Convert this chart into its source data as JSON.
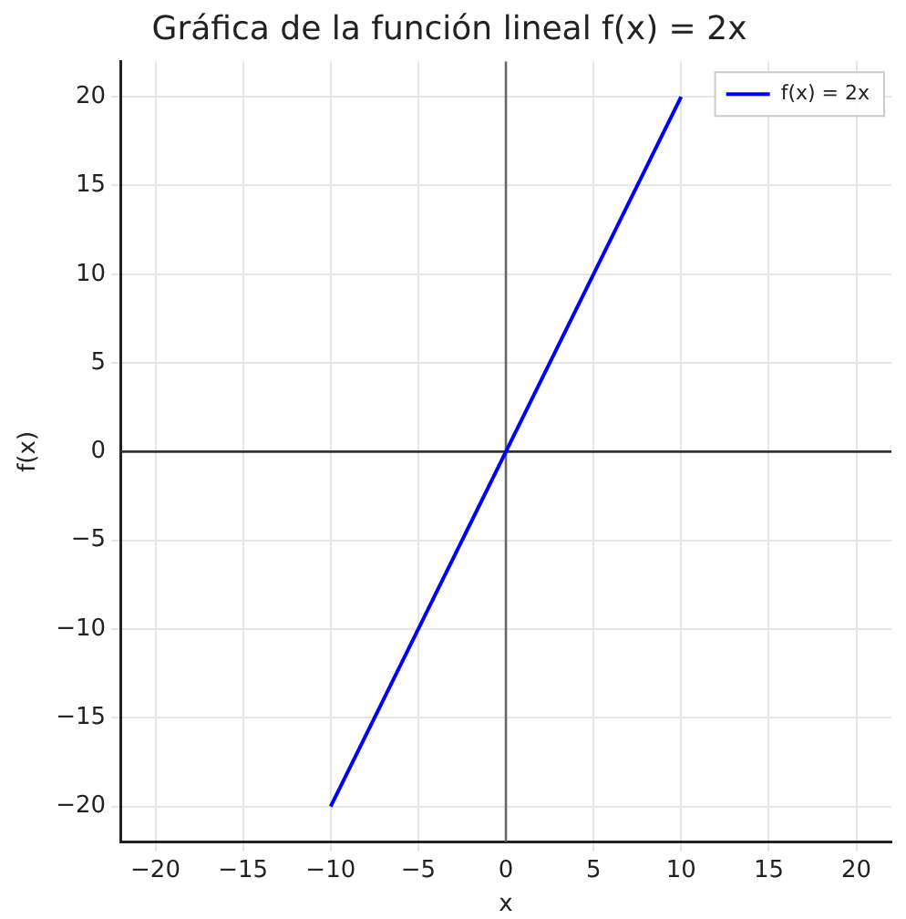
{
  "chart_data": {
    "type": "line",
    "title": "Gráfica de la función lineal f(x) = 2x",
    "xlabel": "x",
    "ylabel": "f(x)",
    "series": [
      {
        "name": "f(x) = 2x",
        "color": "#0000ff",
        "x": [
          -10,
          10
        ],
        "values": [
          -20,
          20
        ]
      }
    ],
    "xlim": [
      -22,
      22
    ],
    "ylim": [
      -22,
      22
    ],
    "xticks": [
      {
        "value": -20,
        "label": "−20"
      },
      {
        "value": -15,
        "label": "−15"
      },
      {
        "value": -10,
        "label": "−10"
      },
      {
        "value": -5,
        "label": "−5"
      },
      0,
      5,
      10,
      15,
      20
    ],
    "yticks": [
      {
        "value": -20,
        "label": "−20"
      },
      {
        "value": -15,
        "label": "−15"
      },
      {
        "value": -10,
        "label": "−10"
      },
      {
        "value": -5,
        "label": "−5"
      },
      0,
      5,
      10,
      15,
      20
    ],
    "ref_lines": [
      {
        "axis": "x",
        "value": 0,
        "color": "#666666"
      },
      {
        "axis": "y",
        "value": 0,
        "color": "#333333"
      }
    ],
    "grid": true,
    "legend": "top right"
  }
}
